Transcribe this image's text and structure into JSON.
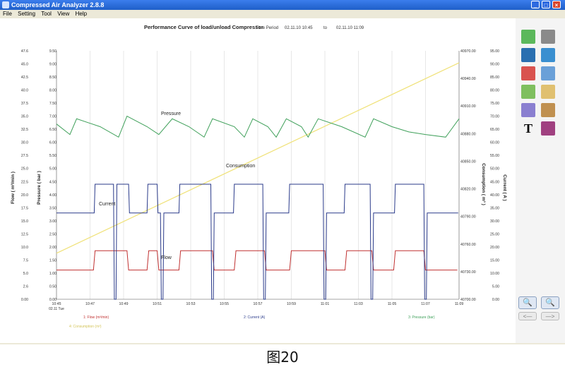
{
  "window": {
    "title": "Compressed Air Analyzer 2.8.8",
    "controls": {
      "minimize": "_",
      "maximize": "□",
      "close": "×"
    }
  },
  "menu": [
    "File",
    "Setting",
    "Tool",
    "View",
    "Help"
  ],
  "header": {
    "title": "Performance Curve of load/unload Compressor",
    "time_period_label": "Time Period",
    "start": "02.11.10 10:45",
    "to_label": "to",
    "end": "02.11.10 11:09"
  },
  "caption": "图20",
  "toolbar": {
    "tools": [
      "arrow-icon",
      "calculator-icon",
      "link-icon",
      "globe-icon",
      "chart-icon",
      "curve-icon",
      "tree-icon",
      "notes-icon",
      "graph-edit-icon",
      "palette-icon",
      "text-icon",
      "bars-icon"
    ],
    "zoom_in_label": "🔍",
    "zoom_out_label": "🔍",
    "prev_label": "<—",
    "next_label": "—>"
  },
  "chart_data": {
    "type": "line",
    "x": [
      "10:45",
      "10:47",
      "10:49",
      "10:51",
      "10:53",
      "10:55",
      "10:57",
      "10:59",
      "11:01",
      "11:03",
      "11:05",
      "11:07",
      "11:09"
    ],
    "x_sublabel": "02.11 Tue",
    "axes": {
      "flow": {
        "label": "Flow ( m³/min )",
        "ticks": [
          "0.00",
          "2.6",
          "5.0",
          "7.5",
          "10.0",
          "12.5",
          "15.0",
          "17.5",
          "20.0",
          "22.5",
          "25.0",
          "27.5",
          "30.0",
          "32.5",
          "35.0",
          "37.5",
          "40.0",
          "42.5",
          "45.0",
          "47.6"
        ]
      },
      "pressure": {
        "label": "Pressure ( bar )",
        "ticks": [
          "0.00",
          "0.50",
          "1.00",
          "1.50",
          "2.00",
          "2.50",
          "3.00",
          "3.50",
          "4.00",
          "4.50",
          "5.00",
          "5.50",
          "6.00",
          "6.50",
          "7.00",
          "7.50",
          "8.00",
          "8.50",
          "9.00",
          "9.50"
        ]
      },
      "consumption": {
        "label": "Consumption ( m³ )",
        "ticks": [
          "40700.00",
          "40730.00",
          "40760.00",
          "40790.00",
          "40820.00",
          "40850.00",
          "40880.00",
          "40910.00",
          "40940.00",
          "40970.00"
        ]
      },
      "current": {
        "label": "Current ( A )",
        "ticks": [
          "0.00",
          "5.00",
          "10.00",
          "15.00",
          "20.00",
          "25.00",
          "30.00",
          "35.00",
          "40.00",
          "45.00",
          "50.00",
          "55.00",
          "60.00",
          "65.00",
          "70.00",
          "75.00",
          "80.00",
          "85.00",
          "90.00",
          "95.00"
        ]
      }
    },
    "series": [
      {
        "name": "Pressure",
        "color": "#3fa05a"
      },
      {
        "name": "Consumption",
        "color": "#f0e27a"
      },
      {
        "name": "Current",
        "color": "#2a3a8a"
      },
      {
        "name": "Flow",
        "color": "#c03030"
      }
    ],
    "legend": [
      "1: Flow (m³/min)",
      "2: Current (A)",
      "3: Pressure (bar)",
      "4: Consumption (m³)"
    ],
    "grid": true
  }
}
